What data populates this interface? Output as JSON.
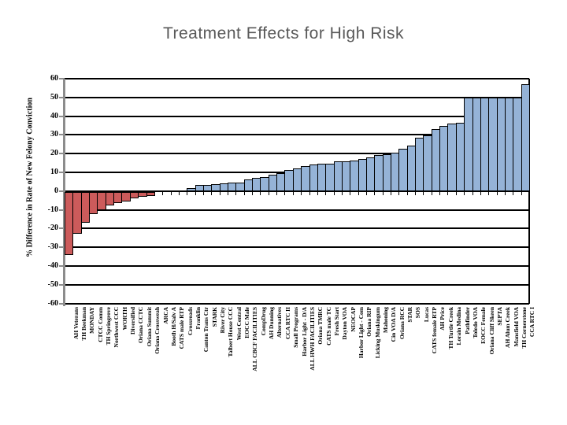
{
  "slide": {
    "title": "Treatment Effects for High Risk",
    "title_color": "#595959",
    "background": "#ffffff"
  },
  "chart_data": {
    "type": "bar",
    "title": "Treatment Effects for High Risk",
    "xlabel": "",
    "ylabel": "% Difference in Rate of New Felony Conviction",
    "ylim": [
      -60,
      60
    ],
    "ytick_step": 10,
    "grid": true,
    "legend": false,
    "colors": {
      "negative_bar": "#CC5B5B",
      "positive_bar": "#95B3D7",
      "bar_border": "#000000",
      "gridline": "#000000",
      "axis": "#8C8C8C",
      "title": "#595959",
      "text": "#000000"
    },
    "categories": [
      "AH Veterans",
      "TH Beekman",
      "MONDAY",
      "CTCC Comm",
      "TH Springrove",
      "Northwest CCC",
      "WORTH",
      "Diversified",
      "Oriana CCTC",
      "Oriana Summit",
      "Oriana Crossweah",
      "ARCA",
      "Booth H/Salv A",
      "CATS male RTP",
      "Crossroads",
      "Franklin",
      "Canton Trans Ctr",
      "STARK",
      "River City",
      "Talbert House CCC",
      "West Central",
      "EOCC Male",
      "ALL CBCF FACILITIES",
      "CompDrug",
      "AH Dunning",
      "Alternatives",
      "CCA RTC II",
      "Small Programs",
      "Harbor Light - D/A",
      "ALL HWH FACILITIES",
      "Oriana TMRC",
      "CATS male TC",
      "Fresh Start",
      "Dayton VOA",
      "NEOCAP",
      "Harbor Light - Com",
      "Oriana RIP",
      "Licking Muskingum",
      "Mahoning",
      "Cin VOA D/A",
      "Oriana RCC",
      "STAR",
      "SOS",
      "Lucas",
      "CATS female RTP",
      "AH Price",
      "TH Turtle Creek",
      "Lorain Medina",
      "Pathfinder",
      "Toledo VOA",
      "EOCC Female",
      "Oriana Cliff Skeen",
      "SEPTA",
      "AH Alum Creek",
      "Mansfield VOA",
      "TH Cornerstone",
      "CCA RTC I"
    ],
    "values": [
      -34,
      -23,
      -17,
      -12.5,
      -10,
      -7.5,
      -6.5,
      -5.5,
      -4,
      -3,
      -2.5,
      0,
      0,
      0,
      0,
      1.5,
      3.2,
      3.4,
      3.6,
      3.9,
      4.5,
      4.7,
      6.2,
      7.1,
      7.6,
      8.9,
      9.4,
      11.3,
      12.2,
      13.4,
      14.1,
      14.6,
      14.8,
      16,
      16,
      16.2,
      17,
      18,
      19.4,
      19.5,
      20.5,
      22.5,
      24.3,
      28.6,
      29.6,
      33.2,
      34.7,
      36.2,
      36.5,
      50,
      50,
      50,
      50,
      50,
      50,
      50,
      57
    ]
  }
}
